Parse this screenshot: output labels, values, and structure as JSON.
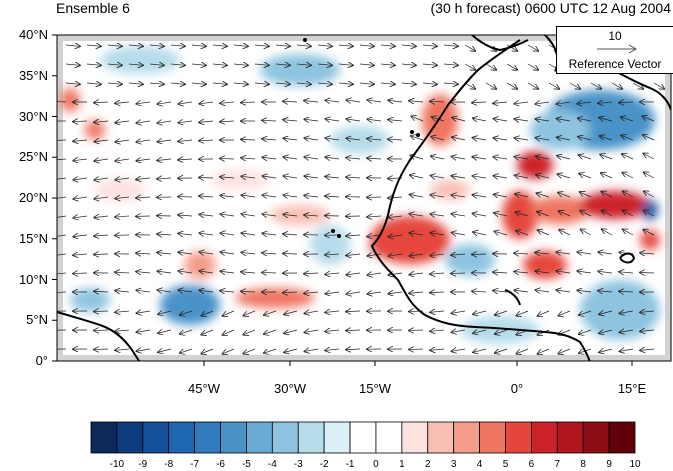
{
  "title": {
    "left": "Ensemble 6",
    "right": "(30 h forecast) 0600 UTC 12 Aug 2004"
  },
  "axes": {
    "lat_labels": [
      "40°N",
      "35°N",
      "30°N",
      "25°N",
      "20°N",
      "15°N",
      "10°N",
      "5°N",
      "0°"
    ],
    "lon_labels": [
      "45°W",
      "30°W",
      "15°W",
      "0°",
      "15°E"
    ]
  },
  "reference_vector": {
    "value": "10",
    "label": "Reference Vector"
  },
  "colorbar": {
    "labels": [
      "-10",
      "-9",
      "-8",
      "-7",
      "-6",
      "-5",
      "-4",
      "-3",
      "-2",
      "-1",
      "0",
      "1",
      "2",
      "3",
      "4",
      "5",
      "6",
      "7",
      "8",
      "9",
      "10"
    ],
    "colors": [
      "#0b2a5a",
      "#0d3c7e",
      "#15519b",
      "#1f66b0",
      "#2f7bbd",
      "#4a93c8",
      "#6aabd4",
      "#8ec4e0",
      "#b6dcea",
      "#dcf0f7",
      "#ffffff",
      "#ffffff",
      "#fde2e0",
      "#f9bfb4",
      "#f59c8a",
      "#ef7561",
      "#e5463c",
      "#cc2229",
      "#b1161e",
      "#8c0d14",
      "#600008"
    ]
  },
  "colors": {
    "land_gray": "#d2d2d2",
    "coast": "#000000",
    "vector": "#222222"
  }
}
